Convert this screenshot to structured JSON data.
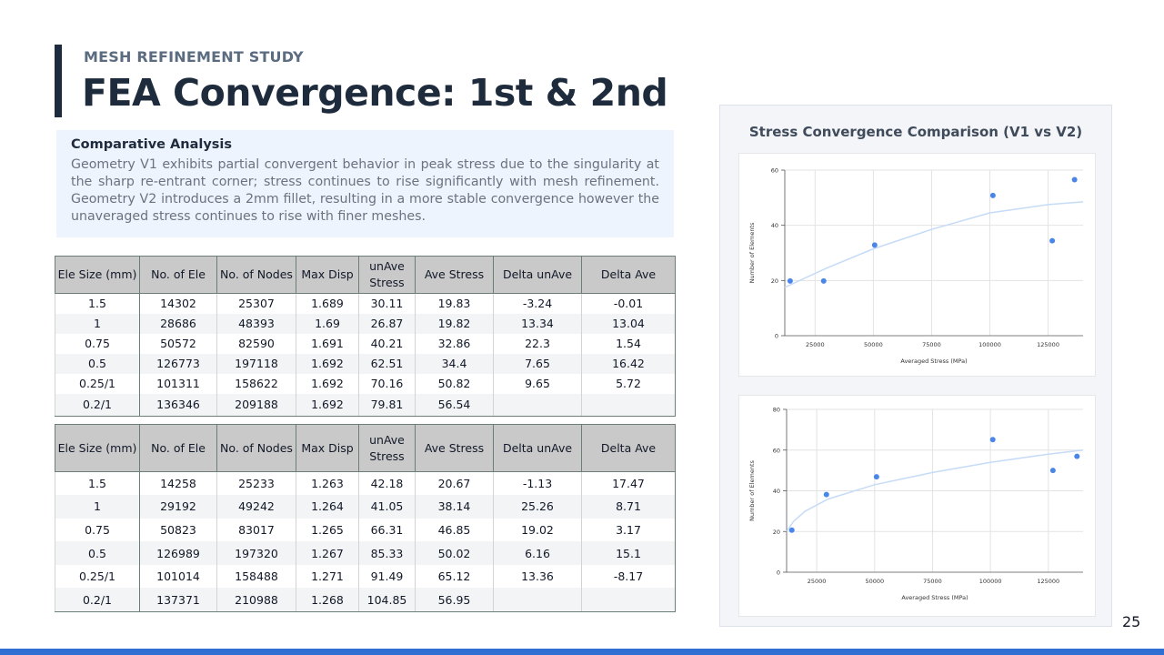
{
  "header": {
    "eyebrow": "MESH REFINEMENT STUDY",
    "title": "FEA Convergence: 1st & 2nd"
  },
  "analysis": {
    "heading": "Comparative Analysis",
    "body": "Geometry V1 exhibits partial convergent behavior in peak stress due to the singularity at the sharp re-entrant corner; stress continues to rise significantly with mesh refinement. Geometry V2 introduces a 2mm fillet, resulting in a more stable convergence however the unaveraged stress continues to rise with finer meshes."
  },
  "tables": [
    {
      "headers": [
        "Ele Size (mm)",
        "No. of Ele",
        "No. of Nodes",
        "Max Disp",
        "unAve Stress",
        "Ave Stress",
        "Delta unAve",
        "Delta Ave"
      ],
      "rows": [
        [
          "1.5",
          "14302",
          "25307",
          "1.689",
          "30.11",
          "19.83",
          "-3.24",
          "-0.01"
        ],
        [
          "1",
          "28686",
          "48393",
          "1.69",
          "26.87",
          "19.82",
          "13.34",
          "13.04"
        ],
        [
          "0.75",
          "50572",
          "82590",
          "1.691",
          "40.21",
          "32.86",
          "22.3",
          "1.54"
        ],
        [
          "0.5",
          "126773",
          "197118",
          "1.692",
          "62.51",
          "34.4",
          "7.65",
          "16.42"
        ],
        [
          "0.25/1",
          "101311",
          "158622",
          "1.692",
          "70.16",
          "50.82",
          "9.65",
          "5.72"
        ],
        [
          "0.2/1",
          "136346",
          "209188",
          "1.692",
          "79.81",
          "56.54",
          "",
          ""
        ]
      ]
    },
    {
      "headers": [
        "Ele Size (mm)",
        "No. of Ele",
        "No. of Nodes",
        "Max Disp",
        "unAve Stress",
        "Ave Stress",
        "Delta unAve",
        "Delta Ave"
      ],
      "rows": [
        [
          "1.5",
          "14258",
          "25233",
          "1.263",
          "42.18",
          "20.67",
          "-1.13",
          "17.47"
        ],
        [
          "1",
          "29192",
          "49242",
          "1.264",
          "41.05",
          "38.14",
          "25.26",
          "8.71"
        ],
        [
          "0.75",
          "50823",
          "83017",
          "1.265",
          "66.31",
          "46.85",
          "19.02",
          "3.17"
        ],
        [
          "0.5",
          "126989",
          "197320",
          "1.267",
          "85.33",
          "50.02",
          "6.16",
          "15.1"
        ],
        [
          "0.25/1",
          "101014",
          "158488",
          "1.271",
          "91.49",
          "65.12",
          "13.36",
          "-8.17"
        ],
        [
          "0.2/1",
          "137371",
          "210988",
          "1.268",
          "104.85",
          "56.95",
          "",
          ""
        ]
      ]
    }
  ],
  "chart_panel_title": "Stress Convergence Comparison (V1 vs V2)",
  "chart_data": [
    {
      "type": "scatter",
      "title": "",
      "xlabel": "Averaged Stress (MPa)",
      "ylabel": "Number of Elements",
      "xlim": [
        12000,
        140000
      ],
      "ylim": [
        0,
        60
      ],
      "xticks": [
        "25000",
        "50000",
        "75000",
        "100000",
        "125000"
      ],
      "xtick_values": [
        25000,
        50000,
        75000,
        100000,
        125000
      ],
      "yticks": [
        "0",
        "20",
        "40",
        "60"
      ],
      "ytick_values": [
        0,
        20,
        40,
        60
      ],
      "grid": true,
      "point_color": "#4a86e8",
      "trend_color": "#c6dbf7",
      "points": [
        {
          "x": 14302,
          "y": 19.83
        },
        {
          "x": 28686,
          "y": 19.82
        },
        {
          "x": 50572,
          "y": 32.86
        },
        {
          "x": 101311,
          "y": 50.82
        },
        {
          "x": 126773,
          "y": 34.4
        },
        {
          "x": 136346,
          "y": 56.54
        }
      ],
      "trend": [
        [
          12000,
          17.5
        ],
        [
          30000,
          24.5
        ],
        [
          50000,
          31.5
        ],
        [
          75000,
          38.5
        ],
        [
          100000,
          44.5
        ],
        [
          125000,
          47.5
        ],
        [
          140000,
          48.5
        ]
      ]
    },
    {
      "type": "scatter",
      "title": "",
      "xlabel": "Averaged Stress (MPa)",
      "ylabel": "Number of Elements",
      "xlim": [
        12000,
        140000
      ],
      "ylim": [
        0,
        80
      ],
      "xticks": [
        "25000",
        "50000",
        "75000",
        "100000",
        "125000"
      ],
      "xtick_values": [
        25000,
        50000,
        75000,
        100000,
        125000
      ],
      "yticks": [
        "0",
        "20",
        "40",
        "60",
        "80"
      ],
      "ytick_values": [
        0,
        20,
        40,
        60,
        80
      ],
      "grid": true,
      "point_color": "#4a86e8",
      "trend_color": "#c6dbf7",
      "points": [
        {
          "x": 14258,
          "y": 20.67
        },
        {
          "x": 29192,
          "y": 38.14
        },
        {
          "x": 50823,
          "y": 46.85
        },
        {
          "x": 101014,
          "y": 65.12
        },
        {
          "x": 126989,
          "y": 50.02
        },
        {
          "x": 137371,
          "y": 56.95
        }
      ],
      "trend": [
        [
          12000,
          20
        ],
        [
          15000,
          25
        ],
        [
          20000,
          30
        ],
        [
          30000,
          36
        ],
        [
          50000,
          43
        ],
        [
          75000,
          49
        ],
        [
          100000,
          54
        ],
        [
          125000,
          58
        ],
        [
          140000,
          60
        ]
      ]
    }
  ],
  "page_number": "25"
}
